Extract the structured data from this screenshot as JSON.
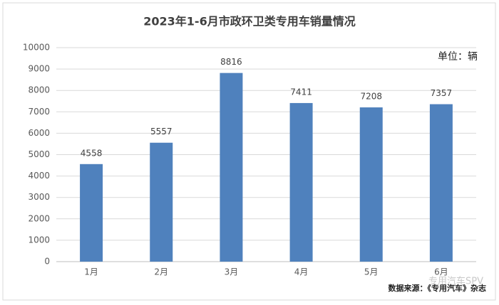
{
  "chart_data": {
    "type": "bar",
    "title": "2023年1-6月市政环卫类专用车销量情况",
    "categories": [
      "1月",
      "2月",
      "3月",
      "4月",
      "5月",
      "6月"
    ],
    "values": [
      4558,
      5557,
      8816,
      7411,
      7208,
      7357
    ],
    "color": "#4f81bd",
    "ylim": [
      0,
      10000
    ],
    "yticks": [
      0,
      1000,
      2000,
      3000,
      4000,
      5000,
      6000,
      7000,
      8000,
      9000,
      10000
    ],
    "grid": true,
    "unit_label": "单位：辆",
    "source": "数据来源：《专用汽车》杂志",
    "watermark": "专用汽车SPV"
  }
}
